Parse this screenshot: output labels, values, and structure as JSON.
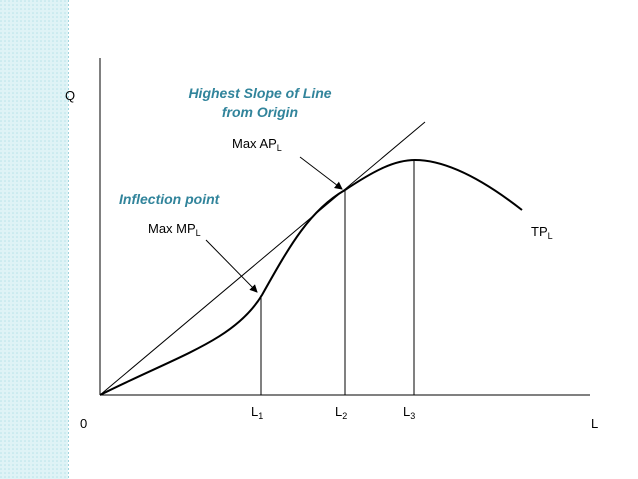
{
  "axes": {
    "y": "Q",
    "x": "L",
    "origin": "0"
  },
  "annotations": {
    "slope_note": [
      "Highest Slope of Line",
      "from Origin"
    ],
    "max_ap": {
      "text": "Max AP",
      "sub": "L"
    },
    "inflection": "Inflection point",
    "max_mp": {
      "text": "Max MP",
      "sub": "L"
    }
  },
  "curve_label": {
    "text": "TP",
    "sub": "L"
  },
  "x_marks": [
    {
      "text": "L",
      "sub": "1"
    },
    {
      "text": "L",
      "sub": "2"
    },
    {
      "text": "L",
      "sub": "3"
    }
  ]
}
